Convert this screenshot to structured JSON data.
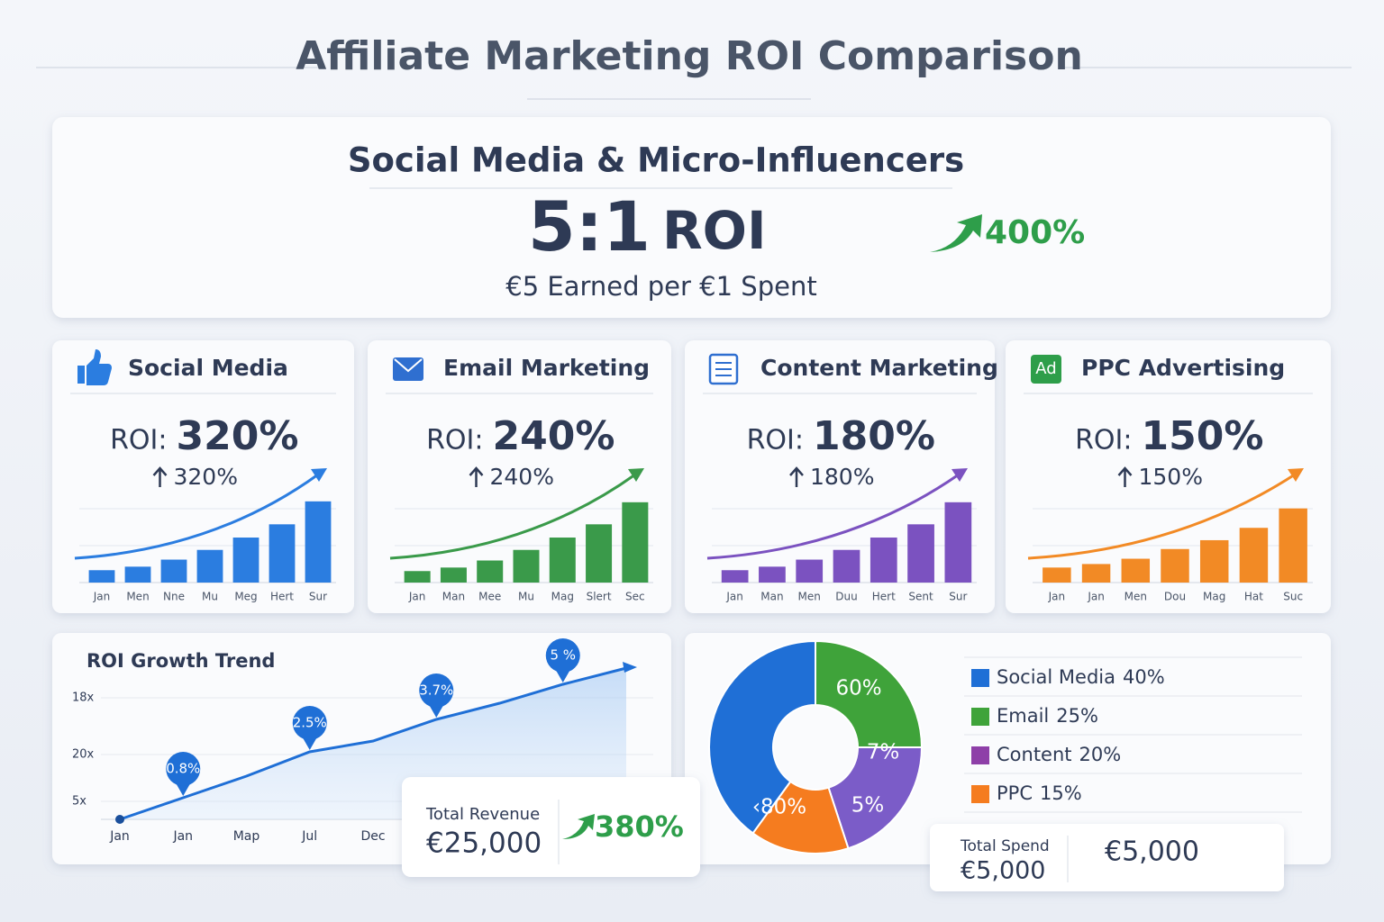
{
  "title": "Affiliate Marketing ROI Comparison",
  "hero": {
    "heading": "Social Media & Micro-Influencers",
    "ratio": "5:1",
    "ratio_unit": "ROI",
    "change": "400%",
    "caption": "€5 Earned per €1 Spent"
  },
  "chart_data": [
    {
      "type": "bar",
      "title": "Social Media",
      "roi_label": "ROI:",
      "roi": "320%",
      "change": "320%",
      "categories": [
        "Jan",
        "Men",
        "Nne",
        "Mu",
        "Meg",
        "Hert",
        "Sur"
      ],
      "values": [
        14,
        18,
        26,
        37,
        51,
        66,
        92
      ],
      "color": "#2b7de0",
      "ylim": [
        0,
        100
      ]
    },
    {
      "type": "bar",
      "title": "Email Marketing",
      "roi_label": "ROI:",
      "roi": "240%",
      "change": "240%",
      "categories": [
        "Jan",
        "Man",
        "Mee",
        "Mu",
        "Mag",
        "Slert",
        "Sec"
      ],
      "values": [
        13,
        17,
        25,
        37,
        51,
        66,
        91
      ],
      "color": "#3a9a4a",
      "ylim": [
        0,
        100
      ]
    },
    {
      "type": "bar",
      "title": "Content Marketing",
      "roi_label": "ROI:",
      "roi": "180%",
      "change": "180%",
      "categories": [
        "Jan",
        "Man",
        "Men",
        "Duu",
        "Hert",
        "Sent",
        "Sur"
      ],
      "values": [
        14,
        18,
        26,
        37,
        51,
        66,
        91
      ],
      "color": "#7b52c0",
      "ylim": [
        0,
        100
      ]
    },
    {
      "type": "bar",
      "title": "PPC Advertising",
      "icon_text": "Ad",
      "roi_label": "ROI:",
      "roi": "150%",
      "change": "150%",
      "categories": [
        "Jan",
        "Jan",
        "Men",
        "Dou",
        "Mag",
        "Hat",
        "Suc"
      ],
      "values": [
        17,
        21,
        27,
        38,
        48,
        62,
        84
      ],
      "color": "#f28a25",
      "ylim": [
        0,
        100
      ]
    },
    {
      "type": "line",
      "title": "ROI Growth Trend",
      "y_labels": [
        "18x",
        "20x",
        "5x"
      ],
      "categories": [
        "Jan",
        "Jan",
        "Map",
        "Jul",
        "Dec",
        null,
        null,
        null,
        null
      ],
      "values": [
        0,
        0.8,
        1.6,
        2.5,
        2.9,
        3.7,
        4.3,
        5,
        5.6
      ],
      "value_labels": [
        null,
        "0.8%",
        null,
        "2.5%",
        null,
        "3.7%",
        null,
        "5 %",
        null
      ],
      "color": "#1f6fd6",
      "ylim": [
        0,
        6
      ]
    },
    {
      "type": "pie",
      "categories": [
        "Social Media",
        "Email",
        "Content",
        "PPC"
      ],
      "values": [
        40,
        25,
        20,
        15
      ],
      "value_labels": [
        "40%",
        "25%",
        "20%",
        "15%"
      ],
      "colors": [
        "#1f6fd6",
        "#3fa33a",
        "#7b5cc8",
        "#f57c1f"
      ],
      "legend_colors": [
        "#1f6fd6",
        "#3fa33a",
        "#8e3fa8",
        "#f57c1f"
      ],
      "slice_labels": [
        "‹80%",
        "60%",
        "7%",
        "5%"
      ]
    }
  ],
  "revenue_card": {
    "label": "Total Revenue",
    "amount": "€25,000",
    "change": "380%"
  },
  "spend_card": {
    "label": "Total Spend",
    "amount": "€5,000",
    "amount_alt": "€5,000"
  }
}
